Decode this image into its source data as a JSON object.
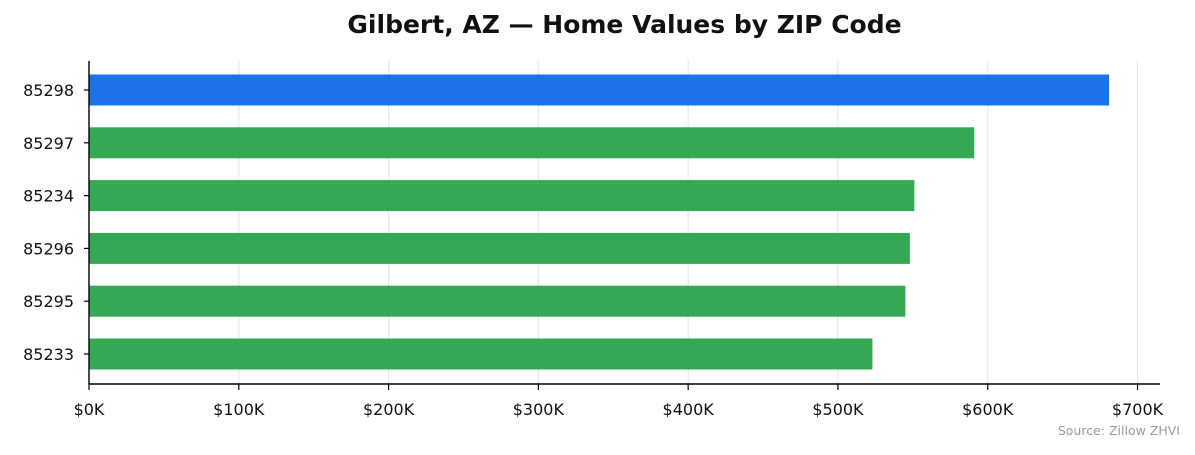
{
  "chart_data": {
    "type": "bar",
    "orientation": "horizontal",
    "title": "Gilbert, AZ — Home Values by ZIP Code",
    "xlabel": "",
    "ylabel": "",
    "categories": [
      "85298",
      "85297",
      "85234",
      "85296",
      "85295",
      "85233"
    ],
    "values": [
      681000,
      591000,
      551000,
      548000,
      545000,
      523000
    ],
    "highlight_category": "85298",
    "xlim": [
      0,
      715000
    ],
    "x_ticks": [
      0,
      100000,
      200000,
      300000,
      400000,
      500000,
      600000,
      700000
    ],
    "x_tick_labels": [
      "$0K",
      "$100K",
      "$200K",
      "$300K",
      "$400K",
      "$500K",
      "$600K",
      "$700K"
    ],
    "grid": "vertical",
    "legend": "none",
    "source_note": "Source: Zillow ZHVI",
    "colors": {
      "highlight": "#1a73e8",
      "default": "#34a853",
      "grid": "#e6e6e6",
      "axis": "#000000"
    }
  }
}
